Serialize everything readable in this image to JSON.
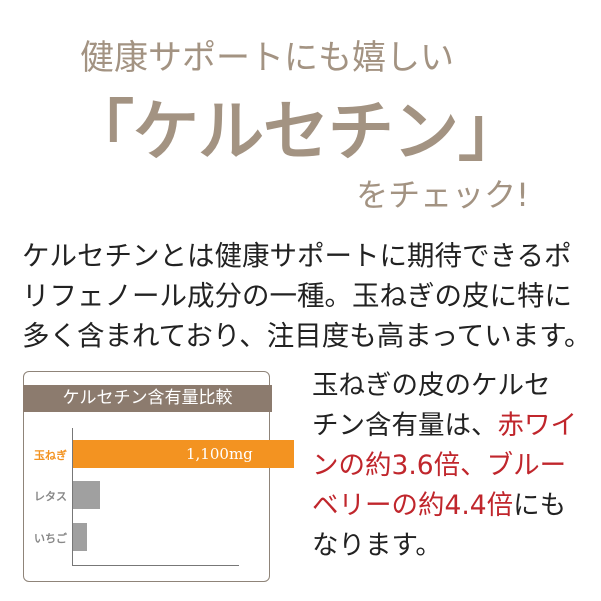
{
  "headline": {
    "line1": "健康サポートにも嬉しい",
    "line2": "「ケルセチン」",
    "line3": "をチェック!"
  },
  "intro": [
    "ケルセチンとは健康サポートに期待できるポ",
    "リフェノール成分の一種。玉ねぎの皮に特に",
    "多く含まれており、注目度も高まっています。"
  ],
  "side_text": {
    "l1": "玉ねぎの皮のケルセ",
    "l2a": "チン含有量は、",
    "l2b": "赤ワイ",
    "l3a": "ンの約3.6倍、ブルー",
    "l4a": "ベリーの約4.4倍",
    "l4b": "にも",
    "l5": "なります。"
  },
  "colors": {
    "title": "#a39382",
    "header": "#8c7b6e",
    "highlight_bar": "#f39321",
    "other_bar": "#a0a0a0",
    "emphasis": "#c0262c"
  },
  "chart_data": {
    "type": "bar",
    "orientation": "horizontal",
    "title": "ケルセチン含有量比較",
    "categories": [
      "玉ねぎ",
      "レタス",
      "いちご"
    ],
    "values": [
      1100,
      134,
      70
    ],
    "value_labels": [
      "1,100mg",
      "",
      ""
    ],
    "unit": "mg",
    "xlim": [
      0,
      1100
    ],
    "grid": false
  }
}
